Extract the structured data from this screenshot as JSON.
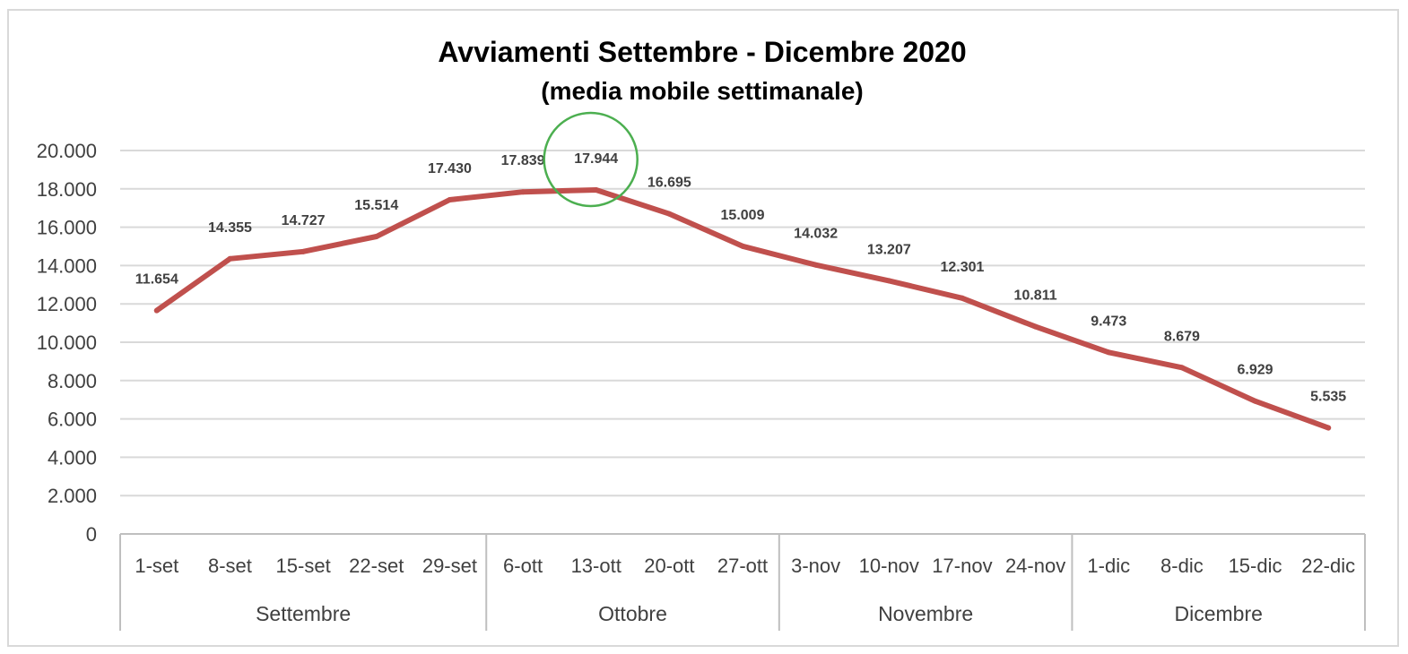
{
  "chart_data": {
    "type": "line",
    "title": "Avviamenti Settembre - Dicembre 2020",
    "subtitle": "(media mobile settimanale)",
    "categories": [
      "1-set",
      "8-set",
      "15-set",
      "22-set",
      "29-set",
      "6-ott",
      "13-ott",
      "20-ott",
      "27-ott",
      "3-nov",
      "10-nov",
      "17-nov",
      "24-nov",
      "1-dic",
      "8-dic",
      "15-dic",
      "22-dic"
    ],
    "groups": [
      {
        "name": "Settembre",
        "count": 5
      },
      {
        "name": "Ottobre",
        "count": 4
      },
      {
        "name": "Novembre",
        "count": 4
      },
      {
        "name": "Dicembre",
        "count": 4
      }
    ],
    "series": [
      {
        "values": [
          11654,
          14355,
          14727,
          15514,
          17430,
          17839,
          17944,
          16695,
          15009,
          14032,
          13207,
          12301,
          10811,
          9473,
          8679,
          6929,
          5535
        ],
        "labels": [
          "11.654",
          "14.355",
          "14.727",
          "15.514",
          "17.430",
          "17.839",
          "17.944",
          "16.695",
          "15.009",
          "14.032",
          "13.207",
          "12.301",
          "10.811",
          "9.473",
          "8.679",
          "6.929",
          "5.535"
        ],
        "color": "#c0504d"
      }
    ],
    "yticks": [
      "20.000",
      "18.000",
      "16.000",
      "14.000",
      "12.000",
      "10.000",
      "8.000",
      "6.000",
      "4.000",
      "2.000",
      "0"
    ],
    "ylim": [
      0,
      20000
    ],
    "grid": true,
    "gridline_color": "#d9d9d9",
    "highlight": {
      "category": "13-ott",
      "shape": "circle",
      "color": "#4caf50"
    }
  }
}
